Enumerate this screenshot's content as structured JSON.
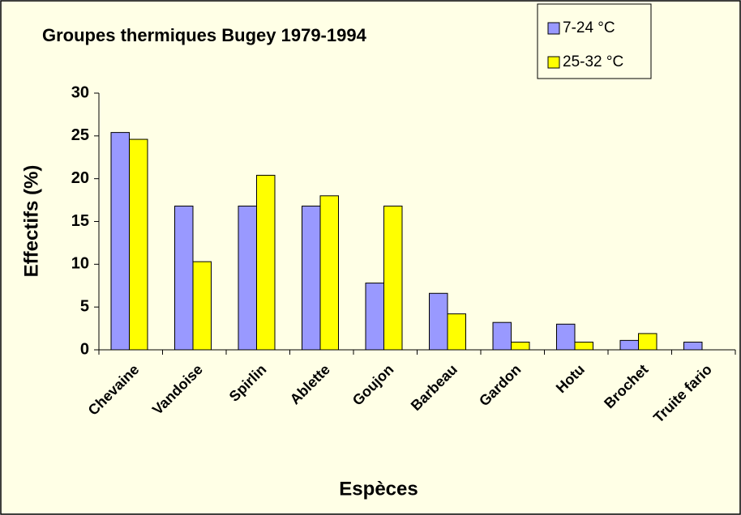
{
  "chart_data": {
    "type": "bar",
    "title": "Groupes thermiques Bugey 1979-1994",
    "x_label": "Espèces",
    "y_label": "Effectifs (%)",
    "categories": [
      "Chevaine",
      "Vandoise",
      "Spirlin",
      "Ablette",
      "Goujon",
      "Barbeau",
      "Gardon",
      "Hotu",
      "Brochet",
      "Truite fario"
    ],
    "series": [
      {
        "name": "7-24 °C",
        "color": "#9999ff",
        "values": [
          25.4,
          16.8,
          16.8,
          16.8,
          7.8,
          6.6,
          3.2,
          3.0,
          1.1,
          0.9
        ]
      },
      {
        "name": "25-32 °C",
        "color": "#ffff00",
        "values": [
          24.6,
          10.3,
          20.4,
          18.0,
          16.8,
          4.2,
          0.9,
          0.9,
          1.9,
          0
        ]
      }
    ],
    "ylim": [
      0,
      30
    ],
    "yticks": [
      0,
      5,
      10,
      15,
      20,
      25,
      30
    ],
    "legend": "top-right",
    "grid": false
  }
}
